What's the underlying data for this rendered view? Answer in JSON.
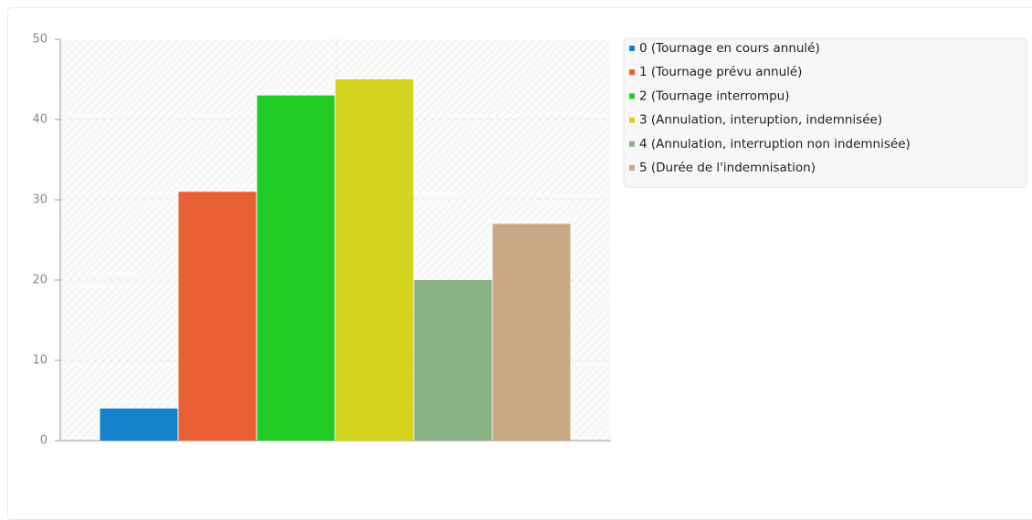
{
  "chart_data": {
    "type": "bar",
    "categories": [
      null
    ],
    "series": [
      {
        "name": "0 (Tournage en cours annulé)",
        "color": "#1483ce",
        "values": [
          4
        ]
      },
      {
        "name": "1 (Tournage prévu annulé)",
        "color": "#e96035",
        "values": [
          31
        ]
      },
      {
        "name": "2 (Tournage interrompu)",
        "color": "#22cc27",
        "values": [
          43
        ]
      },
      {
        "name": "3 (Annulation, interuption, indemnisée)",
        "color": "#d4d41e",
        "values": [
          45
        ]
      },
      {
        "name": "4 (Annulation, interruption non indemnisée)",
        "color": "#89b386",
        "values": [
          20
        ]
      },
      {
        "name": "5 (Durée de l'indemnisation)",
        "color": "#c9a984",
        "values": [
          27
        ]
      }
    ],
    "ylim": [
      0,
      50
    ],
    "yticks": [
      0,
      10,
      20,
      30,
      40,
      50
    ],
    "grid": true,
    "legend": "right"
  }
}
